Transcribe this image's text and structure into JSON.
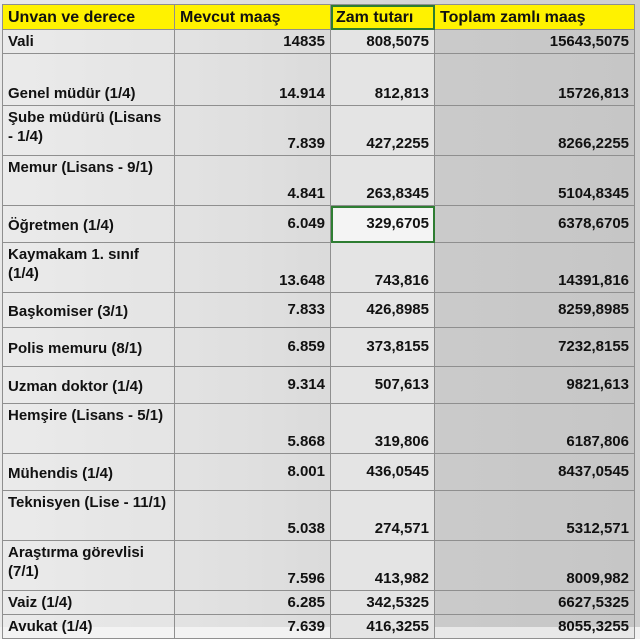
{
  "headers": [
    "Unvan ve derece",
    "Mevcut maaş",
    "Zam tutarı",
    "Toplam zamlı maaş"
  ],
  "rows": [
    {
      "title": "Vali",
      "mevcut": "14835",
      "zam": "808,5075",
      "toplam": "15643,5075"
    },
    {
      "title": "Genel müdür (1/4)",
      "mevcut": "14.914",
      "zam": "812,813",
      "toplam": "15726,813"
    },
    {
      "title": "Şube müdürü (Lisans - 1/4)",
      "mevcut": "7.839",
      "zam": "427,2255",
      "toplam": "8266,2255"
    },
    {
      "title": "Memur (Lisans - 9/1)",
      "mevcut": "4.841",
      "zam": "263,8345",
      "toplam": "5104,8345"
    },
    {
      "title": "Öğretmen (1/4)",
      "mevcut": "6.049",
      "zam": "329,6705",
      "toplam": "6378,6705"
    },
    {
      "title": "Kaymakam 1. sınıf (1/4)",
      "mevcut": "13.648",
      "zam": "743,816",
      "toplam": "14391,816"
    },
    {
      "title": "Başkomiser (3/1)",
      "mevcut": "7.833",
      "zam": "426,8985",
      "toplam": "8259,8985"
    },
    {
      "title": "Polis memuru (8/1)",
      "mevcut": "6.859",
      "zam": "373,8155",
      "toplam": "7232,8155"
    },
    {
      "title": "Uzman doktor (1/4)",
      "mevcut": "9.314",
      "zam": "507,613",
      "toplam": "9821,613"
    },
    {
      "title": "Hemşire (Lisans - 5/1)",
      "mevcut": "5.868",
      "zam": "319,806",
      "toplam": "6187,806"
    },
    {
      "title": "Mühendis (1/4)",
      "mevcut": "8.001",
      "zam": "436,0545",
      "toplam": "8437,0545"
    },
    {
      "title": "Teknisyen (Lise - 11/1)",
      "mevcut": "5.038",
      "zam": "274,571",
      "toplam": "5312,571"
    },
    {
      "title": "Araştırma görevlisi (7/1)",
      "mevcut": "7.596",
      "zam": "413,982",
      "toplam": "8009,982"
    },
    {
      "title": "Vaiz (1/4)",
      "mevcut": "6.285",
      "zam": "342,5325",
      "toplam": "6627,5325"
    },
    {
      "title": "Avukat (1/4)",
      "mevcut": "7.639",
      "zam": "416,3255",
      "toplam": "8055,3255"
    }
  ],
  "selection": {
    "header_column": 2,
    "row": 4,
    "column": 2
  },
  "colors": {
    "header_bg": "#fff200",
    "selection_border": "#2e7d32",
    "grid": "#8f8f8f"
  }
}
